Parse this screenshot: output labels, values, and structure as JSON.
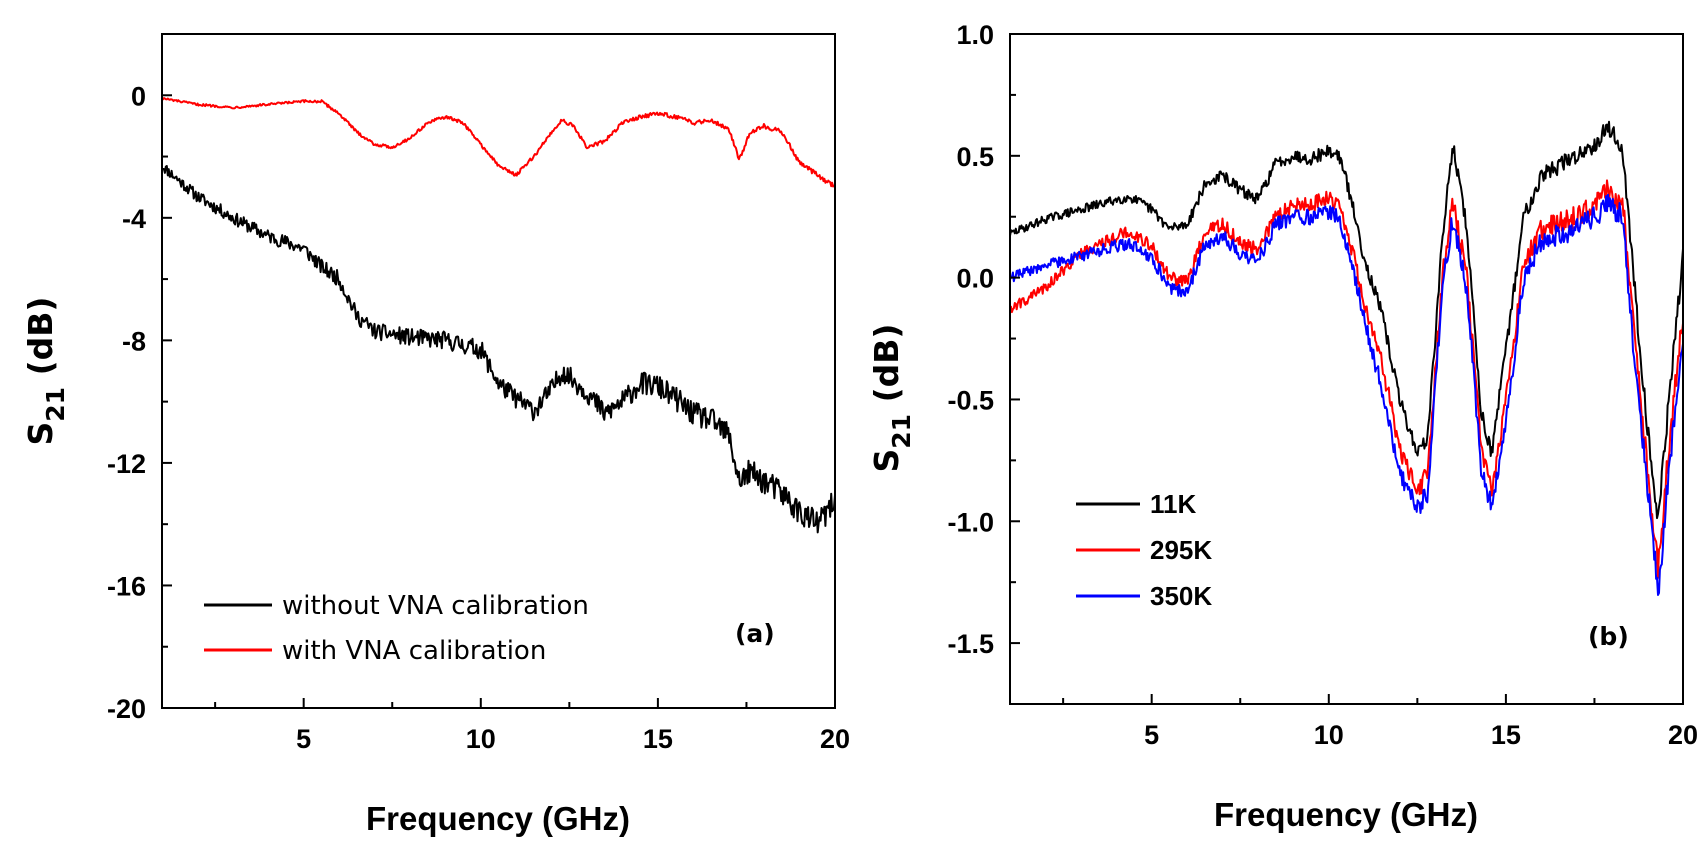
{
  "chart_data": [
    {
      "type": "line",
      "panel_label": "(a)",
      "xlabel": "Frequency (GHz)",
      "ylabel": "S21 (dB)",
      "ylabel_main": "S",
      "ylabel_sub": "21",
      "ylabel_unit": " (dB)",
      "xlim": [
        1,
        20
      ],
      "ylim": [
        -20,
        2
      ],
      "xticks": [
        5,
        10,
        15,
        20
      ],
      "xtick_labels": [
        "5",
        "10",
        "15",
        "20"
      ],
      "yticks": [
        0,
        -4,
        -8,
        -12,
        -16,
        -20
      ],
      "ytick_labels": [
        "0",
        "-4",
        "-8",
        "-12",
        "-16",
        "-20"
      ],
      "legend_position": "bottom-left",
      "series": [
        {
          "name": "without VNA calibration",
          "color": "#000000",
          "noise": 0.45,
          "x": [
            1,
            2,
            3,
            4,
            5,
            5.5,
            6,
            6.5,
            7,
            8,
            9,
            10,
            10.5,
            11,
            11.5,
            12,
            12.3,
            13,
            13.5,
            14,
            14.5,
            15,
            15.5,
            16,
            16.5,
            17,
            17.3,
            17.6,
            18,
            18.5,
            19,
            19.5,
            20
          ],
          "y": [
            -2.3,
            -3.3,
            -4.0,
            -4.6,
            -5.0,
            -5.6,
            -6.0,
            -7.2,
            -7.7,
            -7.9,
            -8.0,
            -8.3,
            -9.4,
            -9.9,
            -10.3,
            -9.6,
            -9.0,
            -9.7,
            -10.4,
            -10.0,
            -9.4,
            -9.5,
            -9.9,
            -10.4,
            -10.6,
            -11.1,
            -12.6,
            -12.3,
            -12.6,
            -13.0,
            -13.6,
            -14.0,
            -13.3
          ]
        },
        {
          "name": "with VNA calibration",
          "color": "#ff0000",
          "noise": 0.08,
          "x": [
            1,
            2,
            3,
            4,
            5,
            5.5,
            6,
            6.5,
            7,
            7.5,
            8,
            8.5,
            9,
            9.5,
            10,
            10.5,
            11,
            11.5,
            12,
            12.3,
            12.6,
            13,
            13.5,
            14,
            14.5,
            15,
            15.5,
            16,
            16.5,
            17,
            17.3,
            17.6,
            18,
            18.5,
            19,
            19.5,
            20
          ],
          "y": [
            -0.1,
            -0.3,
            -0.4,
            -0.3,
            -0.2,
            -0.2,
            -0.6,
            -1.2,
            -1.6,
            -1.7,
            -1.4,
            -0.9,
            -0.7,
            -0.9,
            -1.6,
            -2.3,
            -2.6,
            -2.0,
            -1.2,
            -0.8,
            -1.0,
            -1.7,
            -1.5,
            -0.9,
            -0.7,
            -0.6,
            -0.7,
            -0.9,
            -0.8,
            -1.1,
            -2.1,
            -1.2,
            -1.0,
            -1.2,
            -2.2,
            -2.6,
            -3.0
          ]
        }
      ]
    },
    {
      "type": "line",
      "panel_label": "(b)",
      "xlabel": "Frequency (GHz)",
      "ylabel": "S21 (dB)",
      "ylabel_main": "S",
      "ylabel_sub": "21",
      "ylabel_unit": " (dB)",
      "xlim": [
        1,
        20
      ],
      "ylim": [
        -1.75,
        1.0
      ],
      "xticks": [
        5,
        10,
        15,
        20
      ],
      "xtick_labels": [
        "5",
        "10",
        "15",
        "20"
      ],
      "yticks": [
        1.0,
        0.5,
        0.0,
        -0.5,
        -1.0,
        -1.5
      ],
      "ytick_labels": [
        "1.0",
        "0.5",
        "0.0",
        "-0.5",
        "-1.0",
        "-1.5"
      ],
      "legend_position": "lower-left",
      "series": [
        {
          "name": "11K",
          "color": "#000000",
          "noise": 0.04,
          "x": [
            1,
            2,
            3,
            4,
            4.4,
            5,
            5.5,
            6,
            6.5,
            7,
            7.5,
            8,
            8.5,
            9,
            9.5,
            10,
            10.3,
            10.6,
            11,
            11.5,
            12,
            12.5,
            12.8,
            13.2,
            13.5,
            13.9,
            14.3,
            14.6,
            15,
            15.5,
            16,
            17,
            17.5,
            17.9,
            18.3,
            18.7,
            19,
            19.3,
            19.6,
            20
          ],
          "y": [
            0.18,
            0.24,
            0.28,
            0.32,
            0.33,
            0.28,
            0.2,
            0.22,
            0.38,
            0.42,
            0.36,
            0.32,
            0.47,
            0.5,
            0.49,
            0.52,
            0.5,
            0.34,
            0.08,
            -0.15,
            -0.5,
            -0.72,
            -0.65,
            0.15,
            0.55,
            0.2,
            -0.55,
            -0.72,
            -0.3,
            0.25,
            0.42,
            0.5,
            0.55,
            0.62,
            0.52,
            -0.15,
            -0.62,
            -1.0,
            -0.5,
            0.08
          ]
        },
        {
          "name": "295K",
          "color": "#ff0000",
          "noise": 0.05,
          "x": [
            1,
            2,
            3,
            4,
            4.4,
            5,
            5.5,
            6,
            6.5,
            7,
            7.5,
            8,
            8.5,
            9,
            9.5,
            10,
            10.3,
            10.6,
            11,
            11.5,
            12,
            12.5,
            12.8,
            13.2,
            13.5,
            13.9,
            14.3,
            14.6,
            15,
            15.5,
            16,
            17,
            17.5,
            17.9,
            18.3,
            18.7,
            19,
            19.3,
            19.6,
            20
          ],
          "y": [
            -0.13,
            -0.04,
            0.1,
            0.17,
            0.19,
            0.13,
            0.0,
            -0.02,
            0.18,
            0.22,
            0.14,
            0.11,
            0.25,
            0.3,
            0.3,
            0.33,
            0.3,
            0.15,
            -0.1,
            -0.35,
            -0.7,
            -0.88,
            -0.8,
            0.0,
            0.32,
            0.0,
            -0.7,
            -0.88,
            -0.5,
            0.05,
            0.2,
            0.25,
            0.3,
            0.36,
            0.3,
            -0.35,
            -0.78,
            -1.2,
            -0.7,
            -0.15
          ]
        },
        {
          "name": "350K",
          "color": "#0000ff",
          "noise": 0.05,
          "x": [
            1,
            2,
            3,
            4,
            4.4,
            5,
            5.5,
            6,
            6.5,
            7,
            7.5,
            8,
            8.5,
            9,
            9.5,
            10,
            10.3,
            10.6,
            11,
            11.5,
            12,
            12.5,
            12.8,
            13.2,
            13.5,
            13.9,
            14.3,
            14.6,
            15,
            15.5,
            16,
            17,
            17.5,
            17.9,
            18.3,
            18.7,
            19,
            19.3,
            19.6,
            20
          ],
          "y": [
            0.0,
            0.05,
            0.09,
            0.13,
            0.14,
            0.08,
            -0.04,
            -0.06,
            0.14,
            0.17,
            0.1,
            0.07,
            0.22,
            0.25,
            0.25,
            0.27,
            0.24,
            0.1,
            -0.18,
            -0.45,
            -0.8,
            -0.95,
            -0.88,
            -0.05,
            0.25,
            -0.05,
            -0.78,
            -0.95,
            -0.6,
            0.0,
            0.15,
            0.2,
            0.25,
            0.3,
            0.25,
            -0.45,
            -0.85,
            -1.3,
            -0.8,
            -0.25
          ]
        }
      ]
    }
  ]
}
